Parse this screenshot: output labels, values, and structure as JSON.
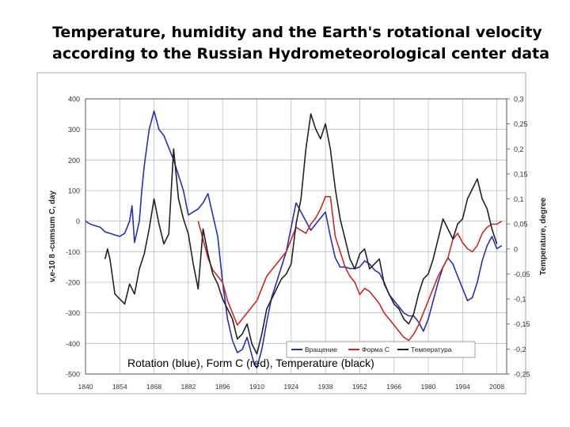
{
  "slide": {
    "title_line1": "Temperature, humidity and the Earth's rotational velocity",
    "title_line2": "according to the Russian Hydrometeorological center data",
    "caption": "Rotation (blue), Form C (red), Temperature (black)"
  },
  "chart_data": {
    "type": "line",
    "title": "",
    "xlabel": "",
    "ylabel": "v,e-10 8 -cumsum C, day",
    "y2label": "Temperature, degree",
    "xlim": [
      1840,
      2012
    ],
    "ylim": [
      -500,
      400
    ],
    "y2lim": [
      -0.25,
      0.3
    ],
    "x_ticks": [
      "1840",
      "1854",
      "1868",
      "1882",
      "1896",
      "1910",
      "1924",
      "1938",
      "1952",
      "1966",
      "1980",
      "1994",
      "2008"
    ],
    "y_ticks": [
      "400",
      "300",
      "200",
      "100",
      "0",
      "-100",
      "-200",
      "-300",
      "-400",
      "-500"
    ],
    "y2_ticks": [
      "0,3",
      "0,25",
      "0,2",
      "0,15",
      "0,1",
      "0,05",
      "0",
      "-0,05",
      "-0,1",
      "-0,15",
      "-0,2",
      "-0,25"
    ],
    "grid": true,
    "legend_position": "bottom-right",
    "series": [
      {
        "name": "Вращение",
        "color": "#2b2fae",
        "axis": "left",
        "x": [
          1840,
          1842,
          1844,
          1846,
          1848,
          1850,
          1852,
          1854,
          1856,
          1858,
          1859,
          1860,
          1862,
          1863,
          1864,
          1866,
          1868,
          1869,
          1870,
          1872,
          1874,
          1876,
          1878,
          1880,
          1882,
          1884,
          1886,
          1888,
          1890,
          1892,
          1894,
          1896,
          1898,
          1900,
          1902,
          1904,
          1906,
          1908,
          1909,
          1910,
          1912,
          1914,
          1916,
          1918,
          1920,
          1922,
          1924,
          1926,
          1928,
          1930,
          1932,
          1934,
          1936,
          1938,
          1940,
          1942,
          1944,
          1946,
          1948,
          1950,
          1952,
          1954,
          1956,
          1958,
          1960,
          1962,
          1964,
          1966,
          1968,
          1970,
          1972,
          1974,
          1976,
          1978,
          1980,
          1982,
          1984,
          1986,
          1988,
          1990,
          1992,
          1994,
          1996,
          1998,
          2000,
          2002,
          2004,
          2006,
          2008,
          2010
        ],
        "values": [
          0,
          -10,
          -15,
          -20,
          -35,
          -40,
          -45,
          -50,
          -40,
          0,
          50,
          -70,
          0,
          100,
          180,
          300,
          360,
          330,
          300,
          280,
          240,
          200,
          150,
          100,
          20,
          30,
          40,
          60,
          90,
          20,
          -50,
          -200,
          -320,
          -390,
          -430,
          -420,
          -380,
          -440,
          -470,
          -480,
          -420,
          -330,
          -250,
          -200,
          -150,
          -100,
          -20,
          60,
          30,
          0,
          -30,
          -10,
          10,
          30,
          -50,
          -120,
          -150,
          -150,
          -155,
          -155,
          -150,
          -130,
          -140,
          -160,
          -170,
          -200,
          -240,
          -260,
          -280,
          -300,
          -310,
          -310,
          -330,
          -360,
          -320,
          -260,
          -200,
          -150,
          -120,
          -140,
          -180,
          -220,
          -260,
          -250,
          -200,
          -130,
          -80,
          -50,
          -90,
          -80
        ]
      },
      {
        "name": "Форма С",
        "color": "#c8282a",
        "axis": "left",
        "x": [
          1886,
          1888,
          1890,
          1892,
          1894,
          1896,
          1898,
          1900,
          1902,
          1904,
          1906,
          1908,
          1910,
          1912,
          1914,
          1916,
          1918,
          1920,
          1922,
          1924,
          1926,
          1928,
          1930,
          1932,
          1934,
          1936,
          1938,
          1940,
          1942,
          1944,
          1946,
          1948,
          1950,
          1952,
          1954,
          1956,
          1958,
          1960,
          1962,
          1964,
          1966,
          1968,
          1970,
          1972,
          1974,
          1976,
          1978,
          1980,
          1982,
          1984,
          1986,
          1988,
          1990,
          1992,
          1994,
          1996,
          1998,
          2000,
          2002,
          2004,
          2006,
          2008,
          2010
        ],
        "values": [
          0,
          -60,
          -120,
          -160,
          -180,
          -200,
          -260,
          -300,
          -340,
          -320,
          -300,
          -280,
          -260,
          -220,
          -180,
          -160,
          -140,
          -120,
          -100,
          -60,
          -20,
          -30,
          -40,
          -10,
          10,
          40,
          80,
          80,
          -50,
          -100,
          -150,
          -180,
          -200,
          -240,
          -220,
          -230,
          -250,
          -270,
          -300,
          -320,
          -340,
          -360,
          -380,
          -390,
          -370,
          -340,
          -300,
          -260,
          -220,
          -180,
          -150,
          -120,
          -60,
          -40,
          -70,
          -90,
          -100,
          -80,
          -40,
          -20,
          -10,
          -10,
          0
        ]
      },
      {
        "name": "Температура",
        "color": "#222222",
        "axis": "right",
        "x": [
          1848,
          1849,
          1850,
          1852,
          1854,
          1856,
          1858,
          1860,
          1862,
          1864,
          1866,
          1868,
          1870,
          1872,
          1874,
          1876,
          1878,
          1880,
          1882,
          1884,
          1886,
          1888,
          1890,
          1892,
          1894,
          1896,
          1898,
          1900,
          1902,
          1904,
          1906,
          1908,
          1910,
          1912,
          1914,
          1916,
          1918,
          1920,
          1922,
          1924,
          1926,
          1928,
          1930,
          1932,
          1934,
          1936,
          1938,
          1940,
          1942,
          1944,
          1946,
          1948,
          1950,
          1952,
          1954,
          1956,
          1958,
          1960,
          1962,
          1964,
          1966,
          1968,
          1970,
          1972,
          1974,
          1976,
          1978,
          1980,
          1982,
          1984,
          1986,
          1988,
          1990,
          1992,
          1994,
          1996,
          1998,
          2000,
          2002,
          2004,
          2006,
          2008
        ],
        "values": [
          -0.02,
          0.0,
          -0.02,
          -0.09,
          -0.1,
          -0.11,
          -0.07,
          -0.09,
          -0.04,
          -0.01,
          0.04,
          0.1,
          0.05,
          0.01,
          0.03,
          0.2,
          0.1,
          0.06,
          0.03,
          -0.03,
          -0.08,
          0.04,
          -0.01,
          -0.05,
          -0.07,
          -0.1,
          -0.12,
          -0.14,
          -0.18,
          -0.17,
          -0.15,
          -0.19,
          -0.21,
          -0.17,
          -0.12,
          -0.1,
          -0.08,
          -0.06,
          -0.05,
          -0.03,
          0.05,
          0.1,
          0.2,
          0.27,
          0.24,
          0.22,
          0.25,
          0.2,
          0.12,
          0.06,
          0.02,
          -0.02,
          -0.04,
          -0.01,
          0.0,
          -0.04,
          -0.03,
          -0.02,
          -0.07,
          -0.09,
          -0.11,
          -0.12,
          -0.14,
          -0.15,
          -0.13,
          -0.09,
          -0.06,
          -0.05,
          -0.02,
          0.02,
          0.06,
          0.04,
          0.02,
          0.05,
          0.06,
          0.1,
          0.12,
          0.14,
          0.1,
          0.08,
          0.04,
          0.01
        ]
      }
    ]
  }
}
